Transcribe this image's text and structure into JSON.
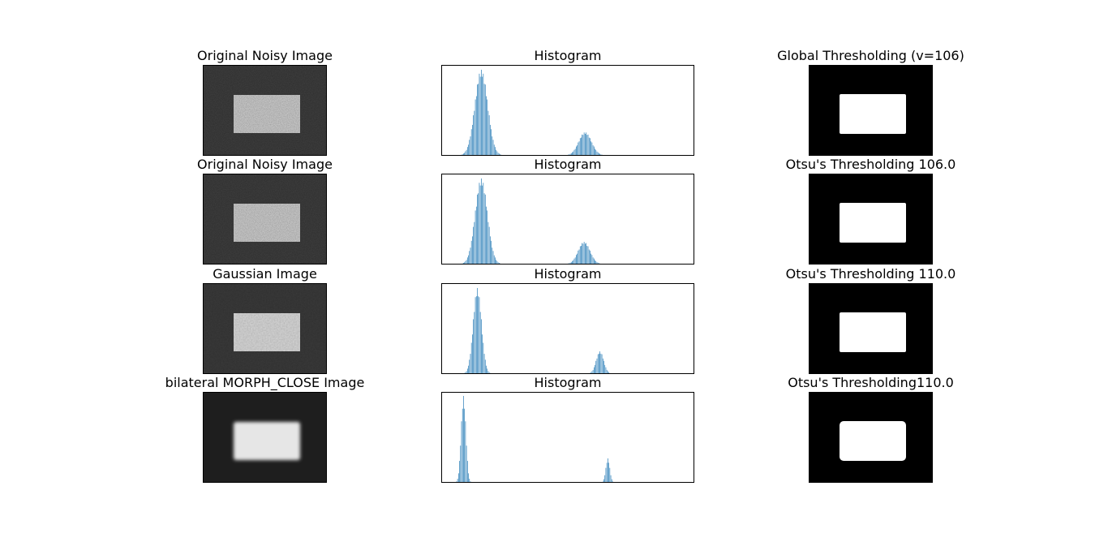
{
  "rows": [
    {
      "image_title": "Original Noisy Image",
      "image_type": "noisy",
      "histogram_title": "Histogram",
      "threshold_title": "Global Thresholding (v=106)"
    },
    {
      "image_title": "Original Noisy Image",
      "image_type": "noisy",
      "histogram_title": "Histogram",
      "threshold_title": "Otsu's Thresholding 106.0"
    },
    {
      "image_title": "Gaussian Image",
      "image_type": "gaussian",
      "histogram_title": "Histogram",
      "threshold_title": "Otsu's Thresholding 110.0"
    },
    {
      "image_title": "bilateral MORPH_CLOSE Image",
      "image_type": "smooth",
      "histogram_title": "Histogram",
      "threshold_title": "Otsu's Thresholding110.0"
    }
  ],
  "chart_data": [
    {
      "type": "bar",
      "title": "Histogram",
      "x_range": [
        0,
        256
      ],
      "ylim": [
        0,
        1
      ],
      "color": "#1f77b4",
      "peaks": [
        {
          "center": 40,
          "width": 6.5,
          "height": 0.96
        },
        {
          "center": 145,
          "width": 6.5,
          "height": 0.26
        }
      ],
      "floor": 0.004
    },
    {
      "type": "bar",
      "title": "Histogram",
      "x_range": [
        0,
        256
      ],
      "ylim": [
        0,
        1
      ],
      "color": "#1f77b4",
      "peaks": [
        {
          "center": 40,
          "width": 6.2,
          "height": 0.96
        },
        {
          "center": 144,
          "width": 6.0,
          "height": 0.25
        }
      ],
      "floor": 0.004
    },
    {
      "type": "bar",
      "title": "Histogram",
      "x_range": [
        0,
        256
      ],
      "ylim": [
        0,
        1
      ],
      "color": "#1f77b4",
      "peaks": [
        {
          "center": 36,
          "width": 4.2,
          "height": 0.96
        },
        {
          "center": 160,
          "width": 3.8,
          "height": 0.25
        }
      ],
      "floor": 0.004
    },
    {
      "type": "bar",
      "title": "Histogram",
      "x_range": [
        0,
        256
      ],
      "ylim": [
        0,
        1
      ],
      "color": "#1f77b4",
      "peaks": [
        {
          "center": 22,
          "width": 2.4,
          "height": 0.97
        },
        {
          "center": 168,
          "width": 2.0,
          "height": 0.27
        }
      ],
      "floor": 0.003
    }
  ]
}
